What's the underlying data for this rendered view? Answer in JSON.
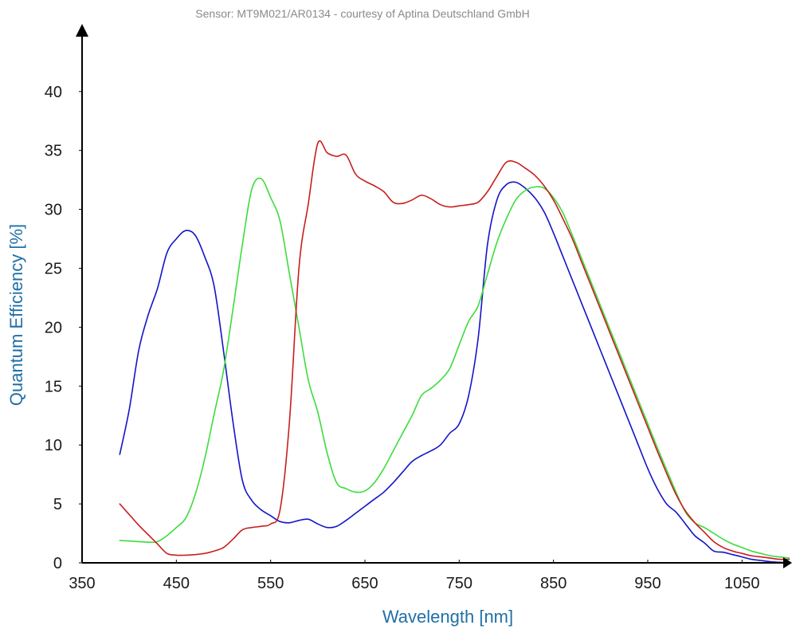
{
  "chart_data": {
    "type": "line",
    "title": "",
    "subtitle": "Sensor: MT9M021/AR0134 - courtesy of Aptina Deutschland GmbH",
    "xlabel": "Wavelength [nm]",
    "ylabel": "Quantum Efficiency [%]",
    "xlim": [
      350,
      1100
    ],
    "ylim": [
      0,
      45
    ],
    "xticks": [
      350,
      450,
      550,
      650,
      750,
      850,
      950,
      1050
    ],
    "yticks": [
      0,
      5,
      10,
      15,
      20,
      25,
      30,
      35,
      40
    ],
    "grid": false,
    "legend": "none",
    "series": [
      {
        "color": "#1414c8",
        "x": [
          390,
          400,
          410,
          420,
          430,
          440,
          450,
          460,
          470,
          480,
          490,
          500,
          510,
          520,
          530,
          540,
          550,
          560,
          570,
          580,
          590,
          600,
          610,
          620,
          630,
          640,
          650,
          660,
          670,
          680,
          690,
          700,
          710,
          720,
          730,
          740,
          750,
          760,
          770,
          780,
          790,
          800,
          810,
          820,
          830,
          840,
          850,
          860,
          870,
          880,
          890,
          900,
          910,
          920,
          930,
          940,
          950,
          960,
          970,
          980,
          990,
          1000,
          1010,
          1020,
          1030,
          1040,
          1050,
          1060,
          1070,
          1080,
          1090,
          1100
        ],
        "y": [
          9.2,
          13,
          18,
          21,
          23.3,
          26.3,
          27.5,
          28.2,
          27.8,
          26,
          23.5,
          18,
          12,
          7,
          5.3,
          4.5,
          4,
          3.5,
          3.4,
          3.6,
          3.7,
          3.3,
          3.0,
          3.1,
          3.6,
          4.2,
          4.8,
          5.4,
          6.0,
          6.8,
          7.7,
          8.6,
          9.1,
          9.5,
          10.0,
          11.0,
          11.8,
          14.2,
          19,
          27,
          30.8,
          32.1,
          32.3,
          31.8,
          31.0,
          29.8,
          28.0,
          26.0,
          24.0,
          22.0,
          20.0,
          18.0,
          16.0,
          14.0,
          12.0,
          10.0,
          8.0,
          6.3,
          5.0,
          4.3,
          3.3,
          2.3,
          1.7,
          1.0,
          0.9,
          0.7,
          0.5,
          0.3,
          0.2,
          0.1,
          0.05,
          0.02
        ]
      },
      {
        "color": "#3cdc3c",
        "x": [
          390,
          400,
          410,
          420,
          430,
          440,
          450,
          460,
          470,
          480,
          490,
          500,
          510,
          520,
          530,
          540,
          550,
          560,
          570,
          580,
          590,
          600,
          610,
          620,
          630,
          640,
          650,
          660,
          670,
          680,
          690,
          700,
          710,
          720,
          730,
          740,
          750,
          760,
          770,
          780,
          790,
          800,
          810,
          820,
          830,
          840,
          850,
          860,
          870,
          880,
          890,
          900,
          910,
          920,
          930,
          940,
          950,
          960,
          970,
          980,
          990,
          1000,
          1010,
          1020,
          1030,
          1040,
          1050,
          1060,
          1070,
          1080,
          1090,
          1100
        ],
        "y": [
          1.9,
          1.85,
          1.8,
          1.75,
          1.8,
          2.3,
          3.0,
          3.8,
          5.8,
          8.8,
          12.6,
          16.3,
          21.5,
          27,
          31.7,
          32.6,
          31,
          29,
          24.5,
          20,
          15.5,
          12.8,
          9.3,
          6.8,
          6.3,
          6.0,
          6.1,
          6.8,
          8.0,
          9.5,
          11.0,
          12.5,
          14.2,
          14.8,
          15.5,
          16.5,
          18.5,
          20.5,
          21.8,
          24.5,
          27.2,
          29.2,
          30.8,
          31.6,
          31.9,
          31.8,
          31.0,
          29.7,
          27.8,
          25.8,
          23.8,
          21.8,
          19.8,
          17.8,
          15.8,
          13.8,
          11.8,
          9.8,
          7.9,
          6.0,
          4.3,
          3.4,
          3.0,
          2.5,
          2.0,
          1.6,
          1.3,
          1.0,
          0.8,
          0.6,
          0.5,
          0.4
        ]
      },
      {
        "color": "#c81e1e",
        "x": [
          390,
          400,
          410,
          420,
          430,
          440,
          450,
          460,
          470,
          480,
          490,
          500,
          510,
          520,
          530,
          540,
          550,
          560,
          570,
          580,
          590,
          600,
          610,
          620,
          630,
          640,
          650,
          660,
          670,
          680,
          690,
          700,
          710,
          720,
          730,
          740,
          750,
          760,
          770,
          780,
          790,
          800,
          810,
          820,
          830,
          840,
          850,
          860,
          870,
          880,
          890,
          900,
          910,
          920,
          930,
          940,
          950,
          960,
          970,
          980,
          990,
          1000,
          1010,
          1020,
          1030,
          1040,
          1050,
          1060,
          1070,
          1080,
          1090,
          1100
        ],
        "y": [
          5.0,
          4.1,
          3.2,
          2.4,
          1.6,
          0.8,
          0.65,
          0.65,
          0.7,
          0.8,
          1.0,
          1.3,
          2.0,
          2.8,
          3.0,
          3.1,
          3.3,
          4.5,
          12.0,
          25.0,
          30.5,
          35.6,
          34.8,
          34.5,
          34.6,
          33.0,
          32.4,
          32.0,
          31.5,
          30.6,
          30.5,
          30.8,
          31.2,
          30.9,
          30.4,
          30.2,
          30.3,
          30.4,
          30.6,
          31.5,
          32.8,
          34.0,
          34.0,
          33.5,
          32.9,
          32.0,
          30.8,
          29.2,
          27.5,
          25.5,
          23.5,
          21.5,
          19.5,
          17.5,
          15.5,
          13.5,
          11.5,
          9.5,
          7.6,
          5.8,
          4.4,
          3.4,
          2.6,
          1.8,
          1.3,
          1.0,
          0.8,
          0.6,
          0.5,
          0.4,
          0.3,
          0.3
        ]
      }
    ]
  }
}
